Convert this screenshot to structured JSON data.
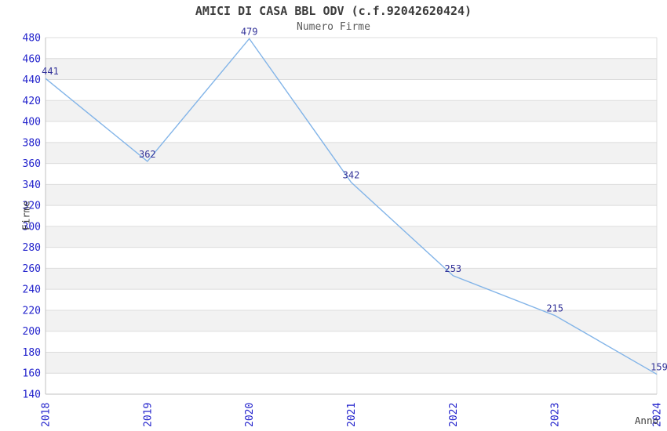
{
  "chart": {
    "title": "AMICI DI CASA BBL ODV (c.f.92042620424)",
    "subtitle": "Numero Firme",
    "xlabel": "Anno",
    "ylabel": "Firme"
  },
  "chart_data": {
    "type": "line",
    "title": "AMICI DI CASA BBL ODV (c.f.92042620424)",
    "subtitle": "Numero Firme",
    "xlabel": "Anno",
    "ylabel": "Firme",
    "categories": [
      "2018",
      "2019",
      "2020",
      "2021",
      "2022",
      "2023",
      "2024"
    ],
    "series": [
      {
        "name": "Numero Firme",
        "values": [
          441,
          362,
          479,
          342,
          253,
          215,
          159
        ]
      }
    ],
    "data_labels": [
      "441",
      "362",
      "479",
      "342",
      "253",
      "215",
      "159"
    ],
    "ylim": [
      140,
      480
    ],
    "ytick_step": 20,
    "grid": "horizontal-bands",
    "legend": "none",
    "colors": {
      "line": "#82b4e8",
      "tick_label": "#2222cc",
      "data_label": "#333399",
      "band_fill": "#f2f2f2",
      "band_alt_fill": "#ffffff",
      "gridline": "#dcdcdc",
      "axis_line": "#c2c2c2",
      "title_text": "#3c3c3c",
      "subtitle_text": "#5a5a5a"
    }
  }
}
